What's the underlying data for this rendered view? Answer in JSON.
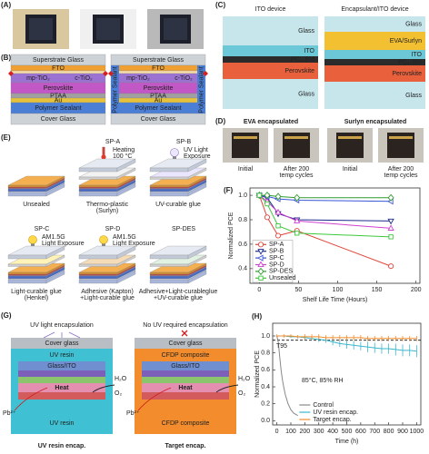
{
  "panel_a": {
    "label": "(A)"
  },
  "panel_b": {
    "label": "(B)",
    "layers": [
      "Superstrate Glass",
      "FTO",
      "c-TiO₂",
      "mp-TiO₂",
      "Perovskite",
      "PTAA",
      "Au",
      "Polymer Sealant",
      "Cover Glass"
    ]
  },
  "panel_c": {
    "label": "(C)",
    "left": {
      "title": "ITO device",
      "layers": [
        "Glass",
        "ITO",
        "PC₆₀BM",
        "Perovskite",
        "Glass"
      ]
    },
    "right": {
      "title": "Encapsulant/ITO device",
      "layers": [
        "Glass",
        "EVA/Surlyn",
        "ITO",
        "PC₆₀BM",
        "Perovskite",
        "Glass"
      ]
    }
  },
  "panel_d": {
    "label": "(D)",
    "groups": [
      {
        "title": "EVA encapsulated",
        "captions": [
          [
            "Initial"
          ],
          [
            "After 200",
            "temp cycles"
          ]
        ]
      },
      {
        "title": "Surlyn encapsulated",
        "captions": [
          [
            "Initial"
          ],
          [
            "After 200",
            "temp cycles"
          ]
        ]
      }
    ]
  },
  "panel_e": {
    "label": "(E)",
    "cells": [
      {
        "caption": [
          "Unsealed"
        ]
      },
      {
        "title": "SP-A",
        "treatment": [
          "Heating",
          "100 °C"
        ],
        "caption": [
          "Thermo-plastic",
          "(Surlyn)"
        ]
      },
      {
        "title": "SP-B",
        "treatment": [
          "UV Light",
          "Exposure"
        ],
        "caption": [
          "UV-curable glue"
        ]
      },
      {
        "title": "SP-C",
        "treatment": [
          "AM1.5G",
          "Light Exposure"
        ],
        "caption": [
          "Light-curable glue",
          "(Henkel)"
        ]
      },
      {
        "title": "SP-D",
        "treatment": [
          "AM1.5G",
          "Light Exposure"
        ],
        "caption": [
          "Adhesive (Kapton)",
          "+Light-curable glue"
        ]
      },
      {
        "title": "SP-DES",
        "caption": [
          "Adhesive+Light-curableglue",
          "+UV-curable glue"
        ]
      }
    ]
  },
  "panel_g": {
    "label": "(G)",
    "left": {
      "title": "UV light encapsulation",
      "layers": [
        "Cover glass",
        "UV resin",
        "Glass/ITO",
        "UV resin"
      ],
      "caption": "UV resin encap."
    },
    "right": {
      "title": "No UV required encapsulation",
      "layers": [
        "Cover glass",
        "CFDP composite",
        "Glass/ITO",
        "CFDP composite"
      ],
      "caption": "Target encap."
    },
    "heat": "Heat",
    "ions": [
      "Pb²⁺",
      "H₂O",
      "O₂"
    ]
  },
  "chart_data": [
    {
      "type": "line",
      "panel_label": "(F)",
      "x_label": "Shelf Life Time (Hours)",
      "y_label": "Normalized PCE",
      "x": [
        0,
        10,
        24,
        48,
        168
      ],
      "xlim": [
        -12,
        205
      ],
      "xticks": [
        0,
        50,
        100,
        150,
        200
      ],
      "ylim": [
        0.28,
        1.06
      ],
      "yticks": [
        0.4,
        0.6,
        0.8,
        {
          "value": 1,
          "label": "1.0"
        }
      ],
      "legend": "lower left",
      "series": [
        {
          "name": "SP-A",
          "color": "#e0453a",
          "marker": "circle",
          "values": [
            1.0,
            0.82,
            0.67,
            0.71,
            0.42
          ]
        },
        {
          "name": "SP-B",
          "color": "#1c2a8c",
          "marker": "triangle-down",
          "values": [
            1.0,
            0.98,
            0.85,
            0.8,
            0.79
          ]
        },
        {
          "name": "SP-C",
          "color": "#3a55d8",
          "marker": "triangle-left",
          "values": [
            1.0,
            0.99,
            0.97,
            0.96,
            0.95
          ]
        },
        {
          "name": "SP-D",
          "color": "#d040d0",
          "marker": "triangle-up",
          "values": [
            1.0,
            0.95,
            0.86,
            0.79,
            0.73
          ]
        },
        {
          "name": "SP-DES",
          "color": "#2e9a2e",
          "marker": "diamond",
          "values": [
            1.0,
            1.0,
            0.99,
            0.98,
            0.98
          ]
        },
        {
          "name": "Unsealed",
          "color": "#3cc83c",
          "marker": "square",
          "values": [
            1.0,
            0.93,
            0.75,
            0.69,
            0.66
          ]
        }
      ]
    },
    {
      "type": "line",
      "panel_label": "(H)",
      "x_label": "Time (h)",
      "y_label": "Normalized PCE",
      "annotations": [
        "T95",
        "85°C, 85% RH"
      ],
      "reference_line": 0.95,
      "xlim": [
        -30,
        1030
      ],
      "xticks": [
        0,
        100,
        200,
        300,
        400,
        500,
        600,
        700,
        800,
        900,
        1000
      ],
      "ylim": [
        -0.05,
        1.15
      ],
      "yticks": [
        {
          "value": 0,
          "label": "0.0"
        },
        0.2,
        0.4,
        0.6,
        0.8,
        {
          "value": 1,
          "label": "1.0"
        }
      ],
      "legend": "lower center",
      "series": [
        {
          "name": "Control",
          "color": "#888888",
          "x": [
            0,
            10,
            20,
            30,
            40,
            50,
            60,
            80,
            100,
            120,
            150
          ],
          "values": [
            1.0,
            0.93,
            0.76,
            0.6,
            0.48,
            0.39,
            0.31,
            0.2,
            0.13,
            0.09,
            0.06
          ]
        },
        {
          "name": "UV resin encap.",
          "color": "#3ab8cc",
          "x": [
            0,
            50,
            100,
            150,
            200,
            250,
            300,
            350,
            400,
            450,
            500,
            550,
            600,
            650,
            700,
            750,
            800,
            850,
            900,
            950,
            1000
          ],
          "values": [
            1.0,
            1.0,
            0.99,
            0.99,
            0.98,
            0.97,
            0.96,
            0.95,
            0.93,
            0.91,
            0.9,
            0.89,
            0.88,
            0.87,
            0.86,
            0.85,
            0.85,
            0.84,
            0.83,
            0.83,
            0.82
          ],
          "errors": [
            0.01,
            0.01,
            0.01,
            0.02,
            0.02,
            0.02,
            0.03,
            0.03,
            0.04,
            0.04,
            0.05,
            0.05,
            0.05,
            0.06,
            0.06,
            0.06,
            0.06,
            0.07,
            0.07,
            0.07,
            0.07
          ]
        },
        {
          "name": "Target encap.",
          "color": "#f28c2c",
          "x": [
            0,
            50,
            100,
            150,
            200,
            250,
            300,
            350,
            400,
            450,
            500,
            550,
            600,
            650,
            700,
            750,
            800,
            850,
            900,
            950,
            1000
          ],
          "values": [
            1.0,
            1.0,
            1.0,
            0.99,
            0.99,
            0.99,
            0.99,
            0.98,
            0.98,
            0.98,
            0.98,
            0.98,
            0.98,
            0.97,
            0.97,
            0.97,
            0.97,
            0.97,
            0.97,
            0.97,
            0.97
          ],
          "errors": [
            0.02,
            0.02,
            0.02,
            0.02,
            0.03,
            0.03,
            0.03,
            0.03,
            0.03,
            0.03,
            0.03,
            0.03,
            0.03,
            0.03,
            0.03,
            0.03,
            0.03,
            0.03,
            0.03,
            0.03,
            0.03
          ]
        }
      ]
    }
  ]
}
